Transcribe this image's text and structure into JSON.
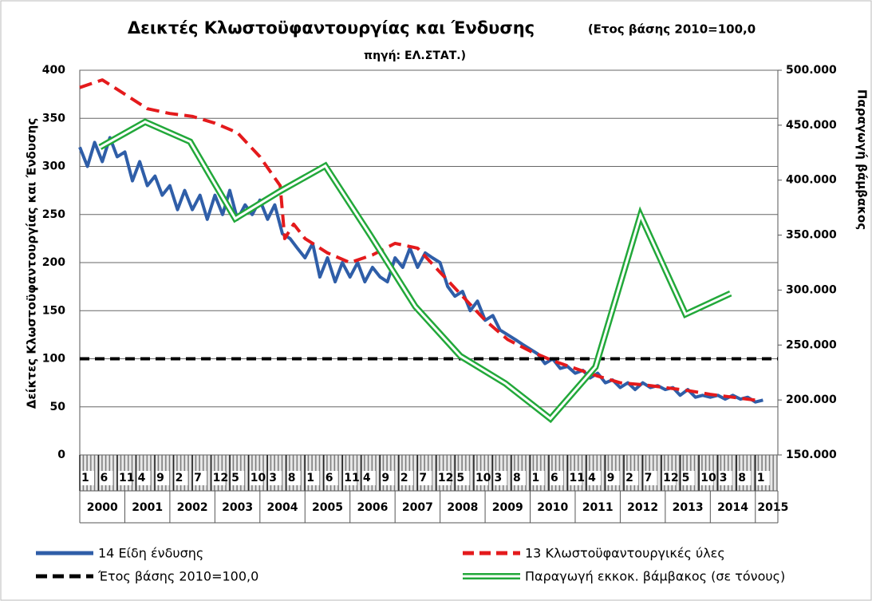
{
  "chart_data": {
    "type": "line",
    "title": "Δεικτές Κλωστοϋφαντουργίας και Ένδυσης",
    "subtitle": "(Ετος βάσης 2010=100,0",
    "source": "πηγή: ΕΛ.ΣΤΑΤ.)",
    "ylabel": "Δείκτες Κλωστοϋφαντουργίας και Ένδυσης",
    "y2label": "Παραγωγή βάμβακος",
    "xlim": [
      2000,
      2015.5
    ],
    "xticks": [
      {
        "value": 2000,
        "label": "1"
      },
      {
        "value": 2000.4167,
        "label": "6"
      },
      {
        "value": 2000.8333,
        "label": "11"
      },
      {
        "value": 2001.25,
        "label": "4"
      },
      {
        "value": 2001.6667,
        "label": "9"
      },
      {
        "value": 2002.0833,
        "label": "2"
      },
      {
        "value": 2002.5,
        "label": "7"
      },
      {
        "value": 2002.9167,
        "label": "12"
      },
      {
        "value": 2003.3333,
        "label": "5"
      },
      {
        "value": 2003.75,
        "label": "10"
      },
      {
        "value": 2004.1667,
        "label": "3"
      },
      {
        "value": 2004.5833,
        "label": "8"
      },
      {
        "value": 2005,
        "label": "1"
      },
      {
        "value": 2005.4167,
        "label": "6"
      },
      {
        "value": 2005.8333,
        "label": "11"
      },
      {
        "value": 2006.25,
        "label": "4"
      },
      {
        "value": 2006.6667,
        "label": "9"
      },
      {
        "value": 2007.0833,
        "label": "2"
      },
      {
        "value": 2007.5,
        "label": "7"
      },
      {
        "value": 2007.9167,
        "label": "12"
      },
      {
        "value": 2008.3333,
        "label": "5"
      },
      {
        "value": 2008.75,
        "label": "10"
      },
      {
        "value": 2009.1667,
        "label": "3"
      },
      {
        "value": 2009.5833,
        "label": "8"
      },
      {
        "value": 2010,
        "label": "1"
      },
      {
        "value": 2010.4167,
        "label": "6"
      },
      {
        "value": 2010.8333,
        "label": "11"
      },
      {
        "value": 2011.25,
        "label": "4"
      },
      {
        "value": 2011.6667,
        "label": "9"
      },
      {
        "value": 2012.0833,
        "label": "2"
      },
      {
        "value": 2012.5,
        "label": "7"
      },
      {
        "value": 2012.9167,
        "label": "12"
      },
      {
        "value": 2013.3333,
        "label": "5"
      },
      {
        "value": 2013.75,
        "label": "10"
      },
      {
        "value": 2014.1667,
        "label": "3"
      },
      {
        "value": 2014.5833,
        "label": "8"
      },
      {
        "value": 2015,
        "label": "1"
      }
    ],
    "year_ticks": [
      2000,
      2001,
      2002,
      2003,
      2004,
      2005,
      2006,
      2007,
      2008,
      2009,
      2010,
      2011,
      2012,
      2013,
      2014,
      2015
    ],
    "ylim": [
      0,
      400
    ],
    "yticks": [
      0,
      50,
      100,
      150,
      200,
      250,
      300,
      350,
      400
    ],
    "y2lim": [
      150000,
      500000
    ],
    "y2ticks": [
      {
        "value": 150000,
        "label": "150.000"
      },
      {
        "value": 200000,
        "label": "200.000"
      },
      {
        "value": 250000,
        "label": "250.000"
      },
      {
        "value": 300000,
        "label": "300.000"
      },
      {
        "value": 350000,
        "label": "350.000"
      },
      {
        "value": 400000,
        "label": "400.000"
      },
      {
        "value": 450000,
        "label": "450.000"
      },
      {
        "value": 500000,
        "label": "500.000"
      }
    ],
    "grid": true,
    "series": [
      {
        "name": "14 Είδη ένδυσης",
        "color": "#2f5ea8",
        "style": "solid",
        "x": [
          2000,
          2000.17,
          2000.33,
          2000.5,
          2000.67,
          2000.83,
          2001,
          2001.17,
          2001.33,
          2001.5,
          2001.67,
          2001.83,
          2002,
          2002.17,
          2002.33,
          2002.5,
          2002.67,
          2002.83,
          2003,
          2003.17,
          2003.33,
          2003.5,
          2003.67,
          2003.83,
          2004,
          2004.17,
          2004.33,
          2004.5,
          2004.67,
          2004.83,
          2005,
          2005.17,
          2005.33,
          2005.5,
          2005.67,
          2005.83,
          2006,
          2006.17,
          2006.33,
          2006.5,
          2006.67,
          2006.83,
          2007,
          2007.17,
          2007.33,
          2007.5,
          2007.67,
          2007.83,
          2008,
          2008.17,
          2008.33,
          2008.5,
          2008.67,
          2008.83,
          2009,
          2009.17,
          2009.33,
          2009.5,
          2009.67,
          2009.83,
          2010,
          2010.17,
          2010.33,
          2010.5,
          2010.67,
          2010.83,
          2011,
          2011.17,
          2011.33,
          2011.5,
          2011.67,
          2011.83,
          2012,
          2012.17,
          2012.33,
          2012.5,
          2012.67,
          2012.83,
          2013,
          2013.17,
          2013.33,
          2013.5,
          2013.67,
          2013.83,
          2014,
          2014.17,
          2014.33,
          2014.5,
          2014.67,
          2014.83,
          2015,
          2015.17
        ],
        "values": [
          320,
          300,
          325,
          305,
          330,
          310,
          315,
          285,
          305,
          280,
          290,
          270,
          280,
          255,
          275,
          255,
          270,
          245,
          270,
          250,
          275,
          245,
          260,
          250,
          265,
          245,
          260,
          230,
          225,
          215,
          205,
          220,
          185,
          205,
          180,
          200,
          185,
          200,
          180,
          195,
          185,
          180,
          205,
          195,
          215,
          195,
          210,
          205,
          200,
          175,
          165,
          170,
          150,
          160,
          140,
          145,
          130,
          125,
          120,
          115,
          110,
          105,
          95,
          100,
          90,
          92,
          85,
          88,
          80,
          85,
          75,
          78,
          70,
          75,
          68,
          75,
          70,
          72,
          68,
          70,
          62,
          68,
          60,
          62,
          60,
          62,
          58,
          62,
          58,
          60,
          55,
          57
        ]
      },
      {
        "name": "13 Κλωστοϋφαντουργικές ύλες",
        "color": "#e41a1c",
        "style": "dash",
        "x": [
          2000,
          2000.5,
          2001,
          2001.5,
          2002,
          2002.5,
          2003,
          2003.5,
          2004,
          2004.3,
          2004.45,
          2004.55,
          2004.75,
          2005,
          2005.5,
          2006,
          2006.5,
          2007,
          2007.5,
          2008,
          2008.5,
          2009,
          2009.5,
          2010,
          2010.5,
          2011,
          2011.5,
          2012,
          2012.5,
          2013,
          2013.5,
          2014,
          2014.5,
          2015
        ],
        "values": [
          382,
          390,
          375,
          360,
          355,
          352,
          345,
          335,
          310,
          290,
          280,
          225,
          240,
          225,
          210,
          200,
          208,
          220,
          215,
          190,
          165,
          140,
          120,
          108,
          98,
          90,
          82,
          75,
          73,
          70,
          67,
          63,
          60,
          57
        ]
      },
      {
        "name": "Έτος βάσης 2010=100,0",
        "color": "#000000",
        "style": "dash",
        "x": [
          2000,
          2015.5
        ],
        "values": [
          100,
          100
        ]
      },
      {
        "name": "Παραγωγή εκκοκ. βάμβακος (σε τόνους)",
        "color": "#22a83a",
        "style": "double",
        "axis": "y2",
        "x": [
          2000.45,
          2001.45,
          2002.45,
          2003.45,
          2004.45,
          2005.45,
          2006.45,
          2007.45,
          2008.45,
          2009.45,
          2010.45,
          2011.45,
          2012.45,
          2013.45,
          2014.45
        ],
        "values": [
          430000,
          453000,
          435000,
          365000,
          390000,
          413000,
          350000,
          285000,
          240000,
          215000,
          183000,
          230000,
          368000,
          278000,
          297000
        ]
      }
    ]
  }
}
